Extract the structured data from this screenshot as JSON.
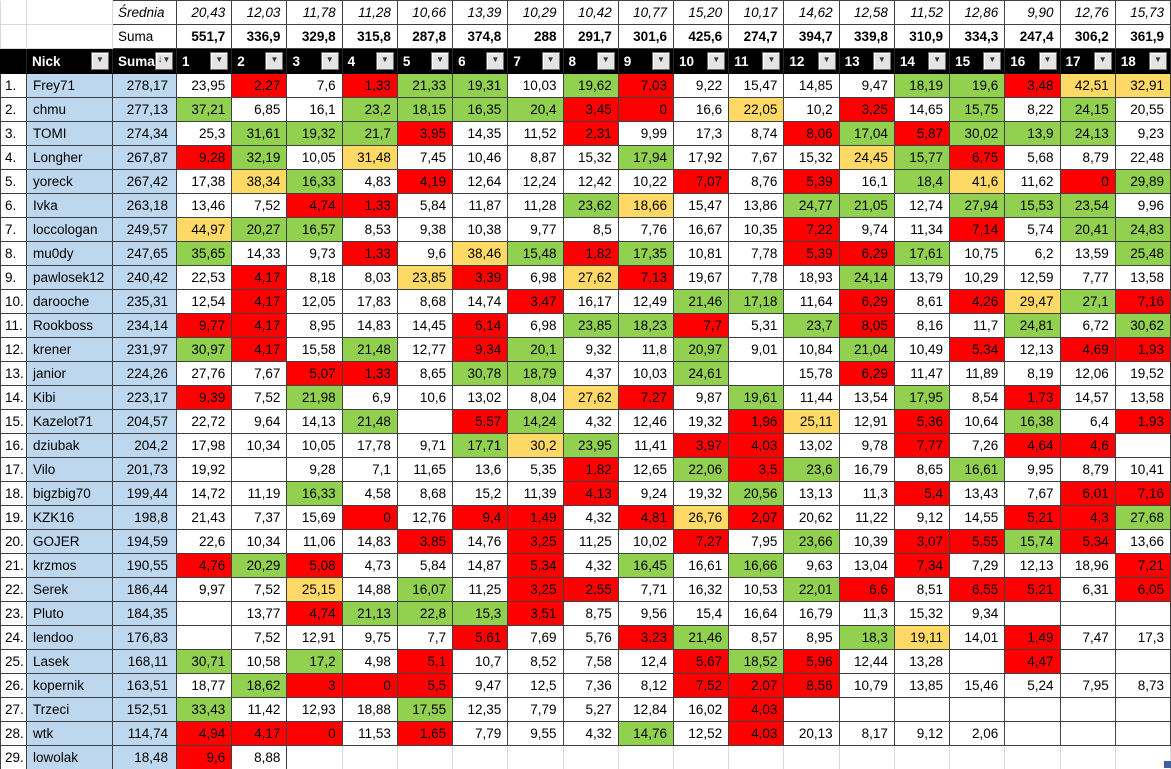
{
  "colors": {
    "green": "#92D050",
    "red": "#FF0000",
    "yellow": "#FFD966",
    "blue_col": "#BDD7EE",
    "header_bg": "#000000",
    "header_fg": "#FFFFFF",
    "fill_handle_blue": "#3F5F9E",
    "white": "#FFFFFF"
  },
  "summary": {
    "average_label": "Średnia",
    "total_label": "Suma",
    "average_values": [
      "20,43",
      "12,03",
      "11,78",
      "11,28",
      "10,66",
      "13,39",
      "10,29",
      "10,42",
      "10,77",
      "15,20",
      "10,17",
      "14,62",
      "12,58",
      "11,52",
      "12,86",
      "9,90",
      "12,76",
      "15,73"
    ],
    "total_values": [
      "551,7",
      "336,9",
      "329,8",
      "315,8",
      "287,8",
      "374,8",
      "288",
      "291,7",
      "301,6",
      "425,6",
      "274,7",
      "394,7",
      "339,8",
      "310,9",
      "334,3",
      "247,4",
      "306,2",
      "361,9"
    ]
  },
  "header": {
    "nick_label": "Nick",
    "suma_label": "Suma",
    "round_labels": [
      "1",
      "2",
      "3",
      "4",
      "5",
      "6",
      "7",
      "8",
      "9",
      "10",
      "11",
      "12",
      "13",
      "14",
      "15",
      "16",
      "17",
      "18"
    ],
    "filter_icon": "▼",
    "sort_desc_icon": "↓"
  },
  "players": [
    {
      "rank": "1.",
      "nick": "Frey71",
      "suma": "278,17",
      "values": [
        "23,95",
        "2,27",
        "7,6",
        "1,33",
        "21,33",
        "19,31",
        "10,03",
        "19,62",
        "7,03",
        "9,22",
        "15,47",
        "14,85",
        "9,47",
        "18,19",
        "19,6",
        "3,48",
        "42,51",
        "32,91"
      ],
      "cell_colors": "wrwrggwgrwwwwggryy"
    },
    {
      "rank": "2.",
      "nick": "chmu",
      "suma": "277,13",
      "values": [
        "37,21",
        "6,85",
        "16,1",
        "23,2",
        "18,15",
        "16,35",
        "20,4",
        "3,45",
        "0",
        "16,6",
        "22,05",
        "10,2",
        "3,25",
        "14,65",
        "15,75",
        "8,22",
        "24,15",
        "20,55"
      ],
      "cell_colors": "gwwggggrrwywrwgwgw"
    },
    {
      "rank": "3.",
      "nick": "TOMI",
      "suma": "274,34",
      "values": [
        "25,3",
        "31,61",
        "19,32",
        "21,7",
        "3,95",
        "14,35",
        "11,52",
        "2,31",
        "9,99",
        "17,3",
        "8,74",
        "8,06",
        "17,04",
        "5,87",
        "30,02",
        "13,9",
        "24,13",
        "9,23"
      ],
      "cell_colors": "wgggrwwrwwwrgrgggw"
    },
    {
      "rank": "4.",
      "nick": "Longher",
      "suma": "267,87",
      "values": [
        "9,28",
        "32,19",
        "10,05",
        "31,48",
        "7,45",
        "10,46",
        "8,87",
        "15,32",
        "17,94",
        "17,92",
        "7,67",
        "15,32",
        "24,45",
        "15,77",
        "6,75",
        "5,68",
        "8,79",
        "22,48"
      ],
      "cell_colors": "rgwywwwwgwwwygrwww"
    },
    {
      "rank": "5.",
      "nick": "yoreck",
      "suma": "267,42",
      "values": [
        "17,38",
        "38,34",
        "16,33",
        "4,83",
        "4,19",
        "12,64",
        "12,24",
        "12,42",
        "10,22",
        "7,07",
        "8,76",
        "5,39",
        "16,1",
        "18,4",
        "41,6",
        "11,62",
        "0",
        "29,89"
      ],
      "cell_colors": "wygwrwwwwrwrwgywrg"
    },
    {
      "rank": "6.",
      "nick": "Ivka",
      "suma": "263,18",
      "values": [
        "13,46",
        "7,52",
        "4,74",
        "1,33",
        "5,84",
        "11,87",
        "11,28",
        "23,62",
        "18,66",
        "15,47",
        "13,86",
        "24,77",
        "21,05",
        "12,74",
        "27,94",
        "15,53",
        "23,54",
        "9,96"
      ],
      "cell_colors": "wwrrwwwgywwggwgggw"
    },
    {
      "rank": "7.",
      "nick": "loccologan",
      "suma": "249,57",
      "values": [
        "44,97",
        "20,27",
        "16,57",
        "8,53",
        "9,38",
        "10,38",
        "9,77",
        "8,5",
        "7,76",
        "16,67",
        "10,35",
        "7,22",
        "9,74",
        "11,34",
        "7,14",
        "5,74",
        "20,41",
        "24,83"
      ],
      "cell_colors": "yggwwwwwwwwrwwrwgg"
    },
    {
      "rank": "8.",
      "nick": "mu0dy",
      "suma": "247,65",
      "values": [
        "35,65",
        "14,33",
        "9,73",
        "1,33",
        "9,6",
        "38,46",
        "15,48",
        "1,82",
        "17,35",
        "10,81",
        "7,78",
        "5,39",
        "6,29",
        "17,61",
        "10,75",
        "6,2",
        "13,59",
        "25,48"
      ],
      "cell_colors": "gwwrwygrgwwrrgwwwg"
    },
    {
      "rank": "9.",
      "nick": "pawlosek12",
      "suma": "240,42",
      "values": [
        "22,53",
        "4,17",
        "8,18",
        "8,03",
        "23,85",
        "3,39",
        "6,98",
        "27,62",
        "7,13",
        "19,67",
        "7,78",
        "18,93",
        "24,14",
        "13,79",
        "10,29",
        "12,59",
        "7,77",
        "13,58"
      ],
      "cell_colors": "wrwwyrwyrwwwgwwwww"
    },
    {
      "rank": "10.",
      "nick": "darooche",
      "suma": "235,31",
      "values": [
        "12,54",
        "4,17",
        "12,05",
        "17,83",
        "8,68",
        "14,74",
        "3,47",
        "16,17",
        "12,49",
        "21,46",
        "17,18",
        "11,64",
        "6,29",
        "8,61",
        "4,26",
        "29,47",
        "27,1",
        "7,16"
      ],
      "cell_colors": "wrwwwwrwwggwrwrygr"
    },
    {
      "rank": "11.",
      "nick": "Rookboss",
      "suma": "234,14",
      "values": [
        "9,77",
        "4,17",
        "8,95",
        "14,83",
        "14,45",
        "6,14",
        "6,98",
        "23,85",
        "18,23",
        "7,7",
        "5,31",
        "23,7",
        "8,05",
        "8,16",
        "11,7",
        "24,81",
        "6,72",
        "30,62"
      ],
      "cell_colors": "rrwwwrwggrwgrwwgwg"
    },
    {
      "rank": "12.",
      "nick": "krener",
      "suma": "231,97",
      "values": [
        "30,97",
        "4,17",
        "15,58",
        "21,48",
        "12,77",
        "9,34",
        "20,1",
        "9,32",
        "11,8",
        "20,97",
        "9,01",
        "10,84",
        "21,04",
        "10,49",
        "5,34",
        "12,13",
        "4,69",
        "1,93"
      ],
      "cell_colors": "grwgwrgwwgwwgwrwrr"
    },
    {
      "rank": "13.",
      "nick": "janior",
      "suma": "224,26",
      "values": [
        "27,76",
        "7,67",
        "5,07",
        "1,33",
        "8,65",
        "30,78",
        "18,79",
        "4,37",
        "10,03",
        "24,61",
        "",
        "15,78",
        "6,29",
        "11,47",
        "11,89",
        "8,19",
        "12,06",
        "19,52"
      ],
      "cell_colors": "wwrrwggwwgwwrwwwww"
    },
    {
      "rank": "14.",
      "nick": "Kibi",
      "suma": "223,17",
      "values": [
        "9,39",
        "7,52",
        "21,98",
        "6,9",
        "10,6",
        "13,02",
        "8,04",
        "27,62",
        "7,27",
        "9,87",
        "19,61",
        "11,44",
        "13,54",
        "17,95",
        "8,54",
        "1,73",
        "14,57",
        "13,58"
      ],
      "cell_colors": "rwgwwwwyrwgwwgwrww"
    },
    {
      "rank": "15.",
      "nick": "Kazelot71",
      "suma": "204,57",
      "values": [
        "22,72",
        "9,64",
        "14,13",
        "21,48",
        "",
        "5,57",
        "14,24",
        "4,32",
        "12,46",
        "19,32",
        "1,96",
        "25,11",
        "12,91",
        "5,36",
        "10,64",
        "16,38",
        "6,4",
        "1,93"
      ],
      "cell_colors": "wwwgwrgwwwrywrwgwr"
    },
    {
      "rank": "16.",
      "nick": "dziubak",
      "suma": "204,2",
      "values": [
        "17,98",
        "10,34",
        "10,05",
        "17,78",
        "9,71",
        "17,71",
        "30,2",
        "23,95",
        "11,41",
        "3,97",
        "4,03",
        "13,02",
        "9,78",
        "7,77",
        "7,26",
        "4,64",
        "4,6",
        ""
      ],
      "cell_colors": "wwwwwgygwrrwwrwrrw"
    },
    {
      "rank": "17.",
      "nick": "Vilo",
      "suma": "201,73",
      "values": [
        "19,92",
        "",
        "9,28",
        "7,1",
        "11,65",
        "13,6",
        "5,35",
        "1,82",
        "12,65",
        "22,06",
        "3,5",
        "23,6",
        "16,79",
        "8,65",
        "16,61",
        "9,95",
        "8,79",
        "10,41"
      ],
      "cell_colors": "wwwwwwwrwgrgwwgwww"
    },
    {
      "rank": "18.",
      "nick": "bigzbig70",
      "suma": "199,44",
      "values": [
        "14,72",
        "11,19",
        "16,33",
        "4,58",
        "8,68",
        "15,2",
        "11,39",
        "4,13",
        "9,24",
        "19,32",
        "20,56",
        "13,13",
        "11,3",
        "5,4",
        "13,43",
        "7,67",
        "6,01",
        "7,16"
      ],
      "cell_colors": "wwgwwwwrwwgwwrwwrr"
    },
    {
      "rank": "19.",
      "nick": "KZK16",
      "suma": "198,8",
      "values": [
        "21,43",
        "7,37",
        "15,69",
        "0",
        "12,76",
        "9,4",
        "1,49",
        "4,32",
        "4,81",
        "26,76",
        "2,07",
        "20,62",
        "11,22",
        "9,12",
        "14,55",
        "5,21",
        "4,3",
        "27,68"
      ],
      "cell_colors": "wwwrwrrwryrwwwwrrg"
    },
    {
      "rank": "20.",
      "nick": "GOJER",
      "suma": "194,59",
      "values": [
        "22,6",
        "10,34",
        "11,06",
        "14,83",
        "3,85",
        "14,76",
        "3,25",
        "11,25",
        "10,02",
        "7,27",
        "7,95",
        "23,66",
        "10,39",
        "3,07",
        "5,55",
        "15,74",
        "5,34",
        "13,66"
      ],
      "cell_colors": "wwwwrwrwwrwgwrrgrw"
    },
    {
      "rank": "21.",
      "nick": "krzmos",
      "suma": "190,55",
      "values": [
        "4,76",
        "20,29",
        "5,08",
        "4,73",
        "5,84",
        "14,87",
        "5,34",
        "4,32",
        "16,45",
        "16,61",
        "16,66",
        "9,63",
        "13,04",
        "7,34",
        "7,29",
        "12,13",
        "18,96",
        "7,21"
      ],
      "cell_colors": "rgrwwwrwgwgwwrwwwr"
    },
    {
      "rank": "22.",
      "nick": "Serek",
      "suma": "186,44",
      "values": [
        "9,97",
        "7,52",
        "25,15",
        "14,88",
        "16,07",
        "11,25",
        "3,25",
        "2,55",
        "7,71",
        "16,32",
        "10,53",
        "22,01",
        "6,6",
        "8,51",
        "6,55",
        "5,21",
        "6,31",
        "6,05"
      ],
      "cell_colors": "wwywgwrrwwwgrwrrwr"
    },
    {
      "rank": "23.",
      "nick": "Pluto",
      "suma": "184,35",
      "values": [
        "",
        "13,77",
        "4,74",
        "21,13",
        "22,8",
        "15,3",
        "3,51",
        "8,75",
        "9,56",
        "15,4",
        "16,64",
        "16,79",
        "11,3",
        "15,32",
        "9,34",
        "",
        "",
        ""
      ],
      "cell_colors": "wwrgggrwwwwwwwwwww"
    },
    {
      "rank": "24.",
      "nick": "lendoo",
      "suma": "176,83",
      "values": [
        "",
        "7,52",
        "12,91",
        "9,75",
        "7,7",
        "5,61",
        "7,69",
        "5,76",
        "3,23",
        "21,46",
        "8,57",
        "8,95",
        "18,3",
        "19,11",
        "14,01",
        "1,49",
        "7,47",
        "17,3"
      ],
      "cell_colors": "wwwwwrwwrgwwgywrww"
    },
    {
      "rank": "25.",
      "nick": "Lasek",
      "suma": "168,11",
      "values": [
        "30,71",
        "10,58",
        "17,2",
        "4,98",
        "5,1",
        "10,7",
        "8,52",
        "7,58",
        "12,4",
        "5,67",
        "18,52",
        "5,96",
        "12,44",
        "13,28",
        "",
        "4,47",
        "",
        ""
      ],
      "cell_colors": "gwgwrwwwwrgrwwwrww"
    },
    {
      "rank": "26.",
      "nick": "kopernik",
      "suma": "163,51",
      "values": [
        "18,77",
        "18,62",
        "3",
        "0",
        "5,5",
        "9,47",
        "12,5",
        "7,36",
        "8,12",
        "7,52",
        "2,07",
        "8,56",
        "10,79",
        "13,85",
        "15,46",
        "5,24",
        "7,95",
        "8,73"
      ],
      "cell_colors": "wgrrrwwwwrrrwwwwww"
    },
    {
      "rank": "27.",
      "nick": "Trzeci",
      "suma": "152,51",
      "values": [
        "33,43",
        "11,42",
        "12,93",
        "18,88",
        "17,55",
        "12,35",
        "7,79",
        "5,27",
        "12,84",
        "16,02",
        "4,03",
        "",
        "",
        "",
        "",
        "",
        "",
        ""
      ],
      "cell_colors": "gwwwgwwwwwrwwwwwww"
    },
    {
      "rank": "28.",
      "nick": "wtk",
      "suma": "114,74",
      "values": [
        "4,94",
        "4,17",
        "0",
        "11,53",
        "1,65",
        "7,79",
        "9,55",
        "4,32",
        "14,76",
        "12,52",
        "4,03",
        "20,13",
        "8,17",
        "9,12",
        "2,06",
        "",
        "",
        ""
      ],
      "cell_colors": "rrrwrwwwgwrwwwwwww"
    },
    {
      "rank": "29.",
      "nick": "lowolak",
      "suma": "18,48",
      "values": [
        "9,6",
        "8,88",
        "",
        "",
        "",
        "",
        "",
        "",
        "",
        "",
        "",
        "",
        "",
        "",
        "",
        "",
        "",
        ""
      ],
      "cell_colors": "rwwwwwwwwwwwwwwwww"
    }
  ]
}
